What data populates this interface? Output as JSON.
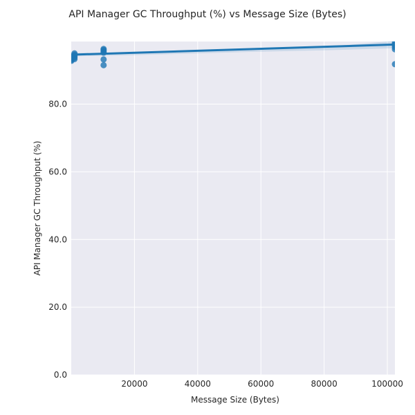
{
  "chart_data": {
    "type": "scatter",
    "title": "API Manager GC Throughput (%) vs Message Size (Bytes)",
    "xlabel": "Message Size (Bytes)",
    "ylabel": "API Manager GC Throughput (%)",
    "xlim": [
      0,
      102400
    ],
    "ylim": [
      0,
      98.5
    ],
    "x_ticks": [
      20000,
      40000,
      60000,
      80000,
      100000
    ],
    "x_tick_labels": [
      "20000",
      "40000",
      "60000",
      "80000",
      "100000"
    ],
    "y_ticks": [
      0,
      20,
      40,
      60,
      80
    ],
    "y_tick_labels": [
      "0.0",
      "20.0",
      "40.0",
      "60.0",
      "80.0"
    ],
    "grid": true,
    "colors": {
      "background": "#eaeaf2",
      "grid": "#ffffff",
      "points": "#1f77b4",
      "fit_line": "#1f77b4",
      "confidence_band": "#1f77b4"
    },
    "points": [
      {
        "x": 50,
        "y": 92.8
      },
      {
        "x": 50,
        "y": 93.1
      },
      {
        "x": 50,
        "y": 93.4
      },
      {
        "x": 50,
        "y": 93.7
      },
      {
        "x": 50,
        "y": 94.0
      },
      {
        "x": 1024,
        "y": 93.3
      },
      {
        "x": 1024,
        "y": 93.7
      },
      {
        "x": 1024,
        "y": 94.0
      },
      {
        "x": 1024,
        "y": 94.3
      },
      {
        "x": 1024,
        "y": 94.6
      },
      {
        "x": 1024,
        "y": 95.0
      },
      {
        "x": 10240,
        "y": 91.5
      },
      {
        "x": 10240,
        "y": 93.2
      },
      {
        "x": 10240,
        "y": 95.2
      },
      {
        "x": 10240,
        "y": 95.6
      },
      {
        "x": 10240,
        "y": 96.0
      },
      {
        "x": 10240,
        "y": 96.3
      },
      {
        "x": 102400,
        "y": 91.8
      },
      {
        "x": 102400,
        "y": 96.2
      },
      {
        "x": 102400,
        "y": 96.8
      },
      {
        "x": 102400,
        "y": 97.3
      },
      {
        "x": 102400,
        "y": 97.7
      },
      {
        "x": 102400,
        "y": 98.1
      }
    ],
    "fit_line": {
      "x": [
        0,
        102400
      ],
      "y": [
        94.6,
        97.6
      ]
    },
    "confidence_band": {
      "x": [
        0,
        20000,
        40000,
        60000,
        80000,
        102400
      ],
      "lower": [
        94.1,
        94.5,
        95.0,
        95.5,
        95.9,
        96.5
      ],
      "upper": [
        95.1,
        95.3,
        95.6,
        96.1,
        96.9,
        98.7
      ]
    }
  }
}
